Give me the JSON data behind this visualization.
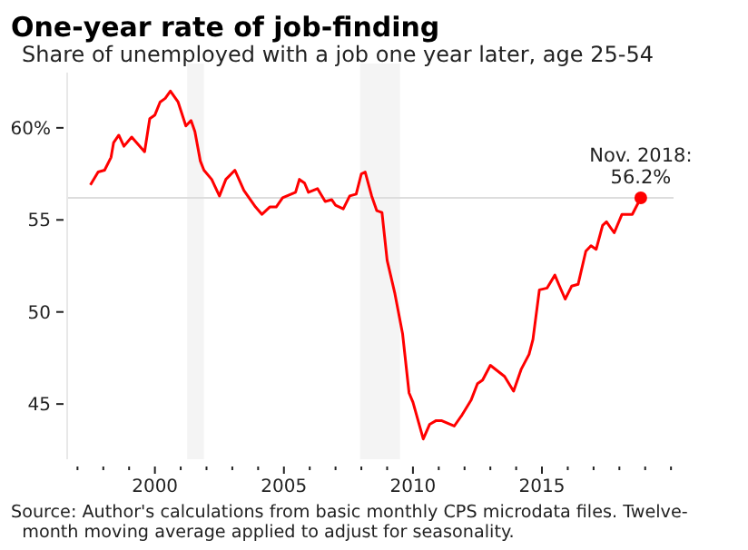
{
  "chart_data": {
    "type": "line",
    "title": "One-year rate of job-finding",
    "subtitle": "Share of unemployed with a job one year later, age 25-54",
    "annotations": [
      {
        "text": "Nov. 2018:\n56.2%",
        "x": 2018.83,
        "y": 56.2
      },
      "Source: Author's calculations from basic monthly CPS microdata files. Twelve-\n  month moving average applied to adjust for seasonality."
    ],
    "series": [
      {
        "color": "#ff0000",
        "x": [
          1997.5,
          1997.8,
          1998.05,
          1998.3,
          1998.4,
          1998.6,
          1998.8,
          1999.1,
          1999.6,
          1999.8,
          2000.0,
          2000.2,
          2000.4,
          2000.6,
          2000.9,
          2001.2,
          2001.4,
          2001.55,
          2001.76,
          2001.9,
          2002.2,
          2002.5,
          2002.75,
          2003.1,
          2003.45,
          2003.9,
          2004.15,
          2004.45,
          2004.7,
          2004.95,
          2005.45,
          2005.6,
          2005.8,
          2005.95,
          2006.3,
          2006.6,
          2006.85,
          2007.0,
          2007.3,
          2007.55,
          2007.8,
          2008.0,
          2008.15,
          2008.4,
          2008.6,
          2008.8,
          2009.0,
          2009.3,
          2009.6,
          2009.85,
          2010.0,
          2010.4,
          2010.65,
          2010.9,
          2011.1,
          2011.6,
          2011.9,
          2012.25,
          2012.5,
          2012.7,
          2013.0,
          2013.55,
          2013.9,
          2014.2,
          2014.5,
          2014.65,
          2014.9,
          2015.2,
          2015.5,
          2015.65,
          2015.9,
          2016.15,
          2016.4,
          2016.7,
          2016.9,
          2017.1,
          2017.35,
          2017.5,
          2017.8,
          2018.1,
          2018.5,
          2018.83
        ],
        "values": [
          56.9,
          57.6,
          57.7,
          58.4,
          59.2,
          59.6,
          59.0,
          59.5,
          58.7,
          60.5,
          60.7,
          61.4,
          61.6,
          62.0,
          61.4,
          60.1,
          60.4,
          59.8,
          58.2,
          57.7,
          57.2,
          56.3,
          57.2,
          57.7,
          56.6,
          55.7,
          55.3,
          55.7,
          55.7,
          56.2,
          56.5,
          57.2,
          57.0,
          56.5,
          56.7,
          56.0,
          56.1,
          55.8,
          55.6,
          56.3,
          56.4,
          57.5,
          57.6,
          56.3,
          55.5,
          55.4,
          52.8,
          51.0,
          48.8,
          45.6,
          45.1,
          43.1,
          43.9,
          44.1,
          44.1,
          43.8,
          44.4,
          45.2,
          46.1,
          46.3,
          47.1,
          46.5,
          45.7,
          46.9,
          47.7,
          48.5,
          51.2,
          51.3,
          52.0,
          51.5,
          50.7,
          51.4,
          51.5,
          53.3,
          53.6,
          53.4,
          54.7,
          54.9,
          54.3,
          55.3,
          55.3,
          56.2
        ]
      },
      {
        "type": "scatter",
        "marker": "circle",
        "color": "#ff0000",
        "x": [
          2018.83
        ],
        "values": [
          56.2
        ]
      }
    ],
    "xlim": [
      1996.6,
      2020.1
    ],
    "ylim": [
      42,
      63
    ],
    "xticks": [
      {
        "value": 1997,
        "label": null
      },
      {
        "value": 1998,
        "label": null
      },
      {
        "value": 1999,
        "label": null
      },
      2000,
      {
        "value": 2001,
        "label": null
      },
      {
        "value": 2002,
        "label": null
      },
      {
        "value": 2003,
        "label": null
      },
      {
        "value": 2004,
        "label": null
      },
      2005,
      {
        "value": 2006,
        "label": null
      },
      {
        "value": 2007,
        "label": null
      },
      {
        "value": 2008,
        "label": null
      },
      {
        "value": 2009,
        "label": null
      },
      2010,
      {
        "value": 2011,
        "label": null
      },
      {
        "value": 2012,
        "label": null
      },
      {
        "value": 2013,
        "label": null
      },
      {
        "value": 2014,
        "label": null
      },
      2015,
      {
        "value": 2016,
        "label": null
      },
      {
        "value": 2017,
        "label": null
      },
      {
        "value": 2018,
        "label": null
      },
      {
        "value": 2019,
        "label": null
      },
      {
        "value": 2020,
        "label": null
      }
    ],
    "yticks": [
      45,
      50,
      55,
      {
        "value": 60,
        "label": "60%"
      }
    ],
    "ref_lines": [
      {
        "axis": "y",
        "value": 56.2,
        "color": "#dddddd"
      }
    ],
    "bands": [
      {
        "axis": "x",
        "from": 2001.25,
        "to": 2001.9,
        "color": "#f4f4f4"
      },
      {
        "axis": "x",
        "from": 2007.95,
        "to": 2009.5,
        "color": "#f4f4f4"
      }
    ],
    "grid": false
  }
}
